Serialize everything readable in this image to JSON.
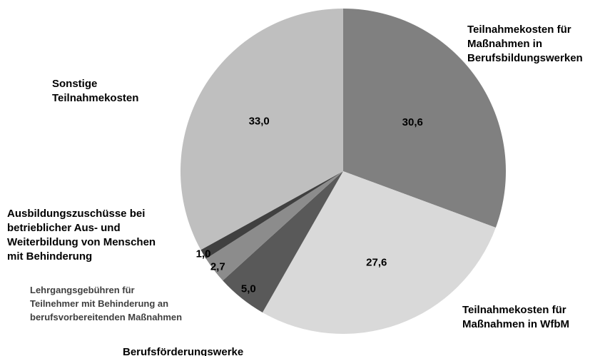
{
  "chart_data": {
    "type": "pie",
    "categories": [
      "Teilnahmekosten für\nMaßnahmen in\nBerufsbildungswerken",
      "Teilnahmekosten für\nMaßnahmen in WfbM",
      "Berufsförderungswerke",
      "Lehrgangsgebühren für\nTeilnehmer mit Behinderung an\nberufsvorbereitenden Maßnahmen",
      "Ausbildungszuschüsse bei\nbetrieblicher Aus- und\nWeiterbildung von Menschen\nmit Behinderung",
      "Sonstige\nTeilnahmekosten"
    ],
    "values": [
      30.6,
      27.6,
      5.0,
      2.7,
      1.0,
      33.0
    ],
    "value_labels": [
      "30,6",
      "27,6",
      "5,0",
      "2,7",
      "1,0",
      "33,0"
    ],
    "colors": [
      "#808080",
      "#d9d9d9",
      "#595959",
      "#8c8c8c",
      "#404040",
      "#bfbfbf"
    ]
  }
}
